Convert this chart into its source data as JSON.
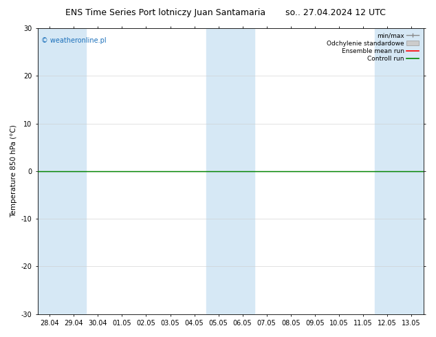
{
  "title_left": "ENS Time Series Port lotniczy Juan Santamaria",
  "title_right": "so.. 27.04.2024 12 UTC",
  "ylabel": "Temperature 850 hPa (°C)",
  "watermark": "© weatheronline.pl",
  "ylim": [
    -30,
    30
  ],
  "yticks": [
    -30,
    -20,
    -10,
    0,
    10,
    20,
    30
  ],
  "x_labels": [
    "28.04",
    "29.04",
    "30.04",
    "01.05",
    "02.05",
    "03.05",
    "04.05",
    "05.05",
    "06.05",
    "07.05",
    "08.05",
    "09.05",
    "10.05",
    "11.05",
    "12.05",
    "13.05"
  ],
  "shade_color": "#d6e8f5",
  "shaded_indices": [
    0,
    1,
    7,
    8,
    14,
    15
  ],
  "background_color": "#ffffff",
  "legend_entries": [
    "min/max",
    "Odchylenie standardowe",
    "Ensemble mean run",
    "Controll run"
  ],
  "zero_line_color": "#000000",
  "controll_run_color": "#008800",
  "ensemble_mean_color": "#ff0000",
  "title_fontsize": 9,
  "tick_fontsize": 7,
  "ylabel_fontsize": 7.5,
  "watermark_color": "#1a6fba",
  "watermark_fontsize": 7
}
